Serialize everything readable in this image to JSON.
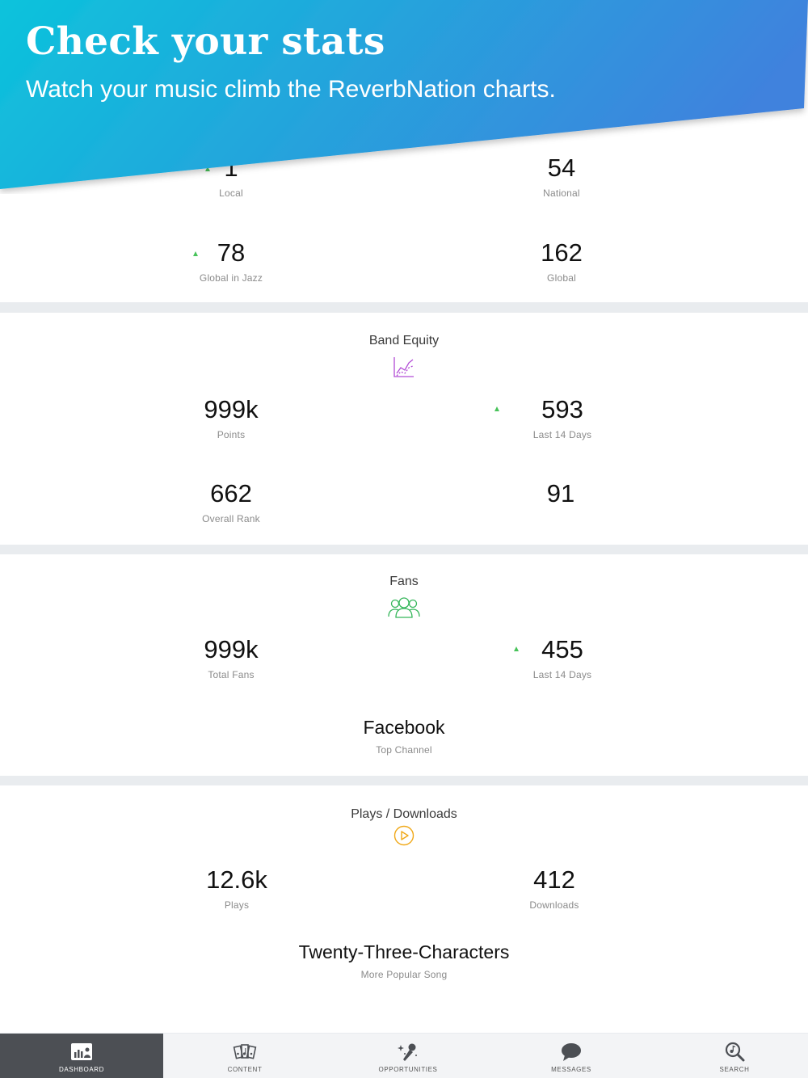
{
  "banner": {
    "title": "Check your stats",
    "subtitle": "Watch your music climb the ReverbNation charts."
  },
  "rank": {
    "local": {
      "value": "1",
      "label": "Local",
      "trend": "up"
    },
    "national": {
      "value": "54",
      "label": "National"
    },
    "global_genre": {
      "value": "78",
      "label": "Global in Jazz",
      "trend": "up"
    },
    "global": {
      "value": "162",
      "label": "Global"
    }
  },
  "band_equity": {
    "title": "Band Equity",
    "icon": "chart-line-icon",
    "points": {
      "value": "999k",
      "label": "Points"
    },
    "last14": {
      "value": "593",
      "label": "Last 14 Days",
      "trend": "up"
    },
    "overall_rank": {
      "value": "662",
      "label": "Overall Rank"
    },
    "other": {
      "value": "91"
    }
  },
  "fans": {
    "title": "Fans",
    "icon": "fans-group-icon",
    "total": {
      "value": "999k",
      "label": "Total Fans"
    },
    "last14": {
      "value": "455",
      "label": "Last 14 Days",
      "trend": "up"
    },
    "top_channel": {
      "value": "Facebook",
      "label": "Top Channel"
    }
  },
  "plays": {
    "title": "Plays / Downloads",
    "icon": "play-circle-icon",
    "plays": {
      "value": "12.6k",
      "label": "Plays"
    },
    "downloads": {
      "value": "412",
      "label": "Downloads"
    },
    "popular_song": {
      "value": "Twenty-Three-Characters",
      "label": "More Popular Song"
    }
  },
  "tabs": [
    {
      "label": "DASHBOARD",
      "icon": "dashboard-icon",
      "active": true
    },
    {
      "label": "CONTENT",
      "icon": "content-icon"
    },
    {
      "label": "OPPORTUNITIES",
      "icon": "opportunities-icon"
    },
    {
      "label": "MESSAGES",
      "icon": "messages-icon"
    },
    {
      "label": "SEARCH",
      "icon": "search-icon"
    }
  ],
  "colors": {
    "banner_start": "#0cc3dc",
    "banner_end": "#3f82dd",
    "trend_up": "#48c35a",
    "equity_icon": "#b24cd6",
    "fans_icon": "#35b65a",
    "plays_icon": "#f0a818",
    "tab_active": "#4c4f54"
  }
}
